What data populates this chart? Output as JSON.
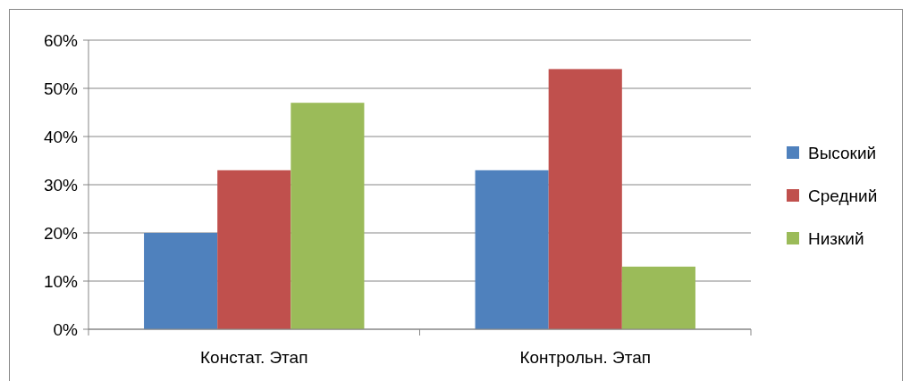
{
  "chart_data": {
    "type": "bar",
    "categories": [
      "Констат. Этап",
      "Контрольн. Этап"
    ],
    "series": [
      {
        "name": "Высокий",
        "color": "#4f81bd",
        "values": [
          20,
          33
        ]
      },
      {
        "name": "Средний",
        "color": "#c0504d",
        "values": [
          33,
          54
        ]
      },
      {
        "name": "Низкий",
        "color": "#9bbb59",
        "values": [
          47,
          13
        ]
      }
    ],
    "ylim": [
      0,
      60
    ],
    "yticks": [
      {
        "value": 0,
        "label": "0%"
      },
      {
        "value": 10,
        "label": "10%"
      },
      {
        "value": 20,
        "label": "20%"
      },
      {
        "value": 30,
        "label": "30%"
      },
      {
        "value": 40,
        "label": "40%"
      },
      {
        "value": 50,
        "label": "50%"
      },
      {
        "value": 60,
        "label": "60%"
      }
    ],
    "grid": "y",
    "legend": "right"
  }
}
